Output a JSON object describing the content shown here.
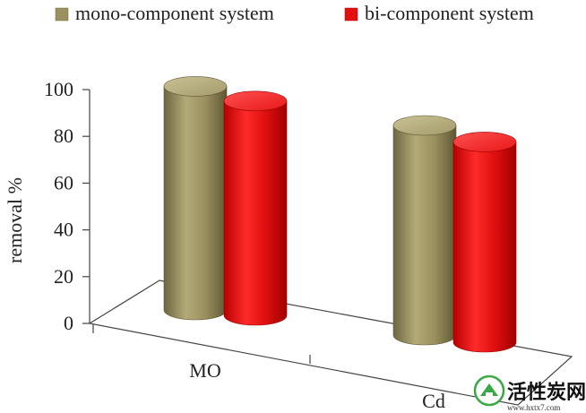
{
  "chart_data": {
    "type": "bar",
    "title": "",
    "xlabel": "",
    "ylabel": "removal %",
    "ylim": [
      0,
      100
    ],
    "yticks": [
      0,
      20,
      40,
      60,
      80,
      100
    ],
    "categories": [
      "MO",
      "Cd"
    ],
    "series": [
      {
        "name": "mono-component system",
        "values": [
          96,
          90
        ],
        "color": "#9B9160"
      },
      {
        "name": "bi-component system",
        "values": [
          92,
          86
        ],
        "color": "#E41010"
      }
    ],
    "grid": false,
    "legend_position": "top",
    "style": "3d-cylinder"
  },
  "watermark": {
    "text": "活性炭网",
    "url": "www.hxtx7.com"
  }
}
